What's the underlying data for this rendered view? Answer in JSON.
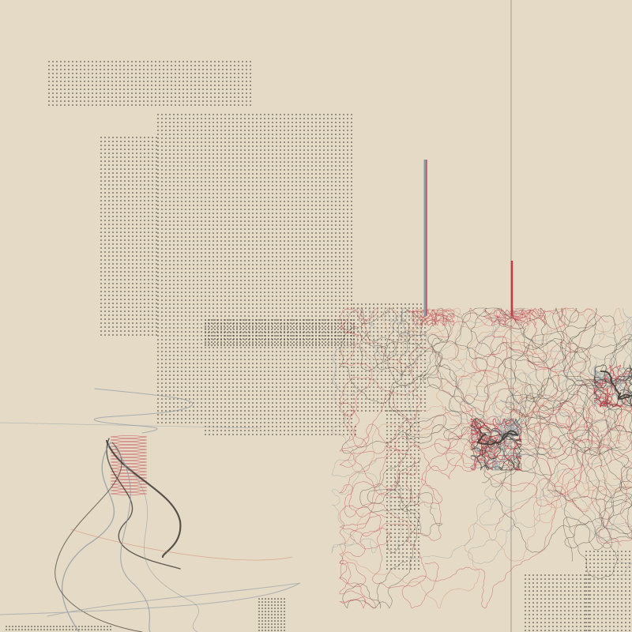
{
  "palette": {
    "background": "#e5dac5",
    "dot": "#2b2622",
    "ink_dark": "#3e3b36",
    "ink_red": "#c03e4a",
    "ink_blue_grey": "#8c9aa6",
    "ink_orange": "#d2876a",
    "guide_line": "#8f8a84"
  },
  "motifs": {
    "dot_fields": "halftone-dot-grid",
    "left_bottom": "helix-coil",
    "right_center": "tangled-random-walks",
    "stalks": "vertical-stem"
  }
}
